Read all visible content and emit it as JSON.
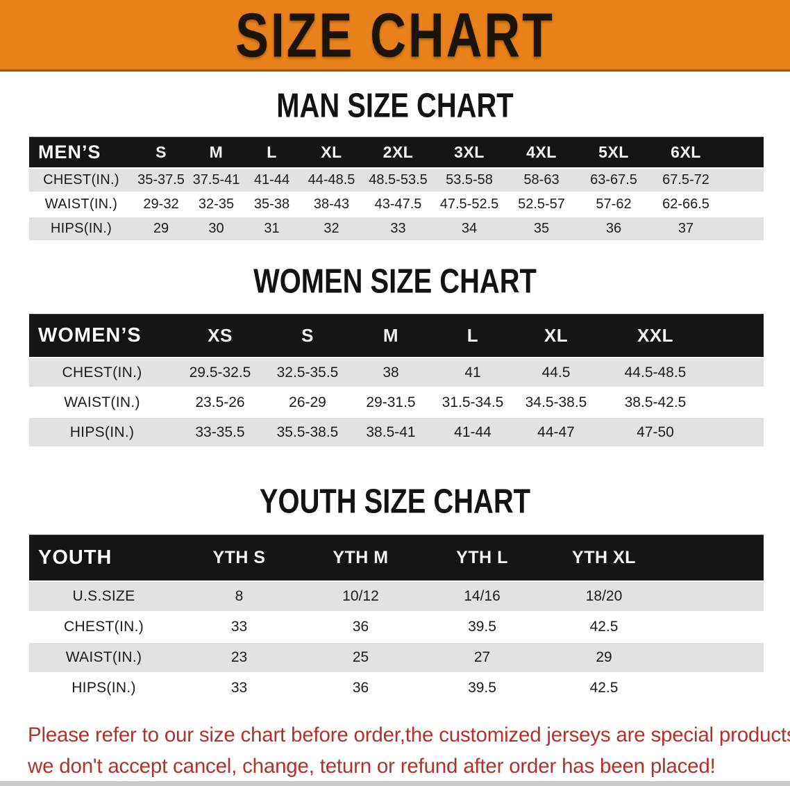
{
  "banner": {
    "title": "SIZE CHART"
  },
  "colors": {
    "banner_bg": "#e8811a",
    "banner_edge": "#9a5a20",
    "header_bg": "#151515",
    "row_gray": "#e2e2e2",
    "row_white": "#ffffff",
    "text_dark": "#1b1b1b",
    "red": "#b2312a",
    "bottom_bar": "#c9c9c9"
  },
  "sections": {
    "men": {
      "title": "MAN SIZE CHART",
      "table": {
        "corner": "MEN’S",
        "columns": [
          "S",
          "M",
          "L",
          "XL",
          "2XL",
          "3XL",
          "4XL",
          "5XL",
          "6XL"
        ],
        "rows": [
          {
            "label": "CHEST(IN.)",
            "values": [
              "35-37.5",
              "37.5-41",
              "41-44",
              "44-48.5",
              "48.5-53.5",
              "53.5-58",
              "58-63",
              "63-67.5",
              "67.5-72"
            ]
          },
          {
            "label": "WAIST(IN.)",
            "values": [
              "29-32",
              "32-35",
              "35-38",
              "38-43",
              "43-47.5",
              "47.5-52.5",
              "52.5-57",
              "57-62",
              "62-66.5"
            ]
          },
          {
            "label": "HIPS(IN.)",
            "values": [
              "29",
              "30",
              "31",
              "32",
              "33",
              "34",
              "35",
              "36",
              "37"
            ]
          }
        ]
      }
    },
    "women": {
      "title": "WOMEN SIZE CHART",
      "table": {
        "corner": "WOMEN’S",
        "columns": [
          "XS",
          "S",
          "M",
          "L",
          "XL",
          "XXL"
        ],
        "rows": [
          {
            "label": "CHEST(IN.)",
            "values": [
              "29.5-32.5",
              "32.5-35.5",
              "38",
              "41",
              "44.5",
              "44.5-48.5"
            ]
          },
          {
            "label": "WAIST(IN.)",
            "values": [
              "23.5-26",
              "26-29",
              "29-31.5",
              "31.5-34.5",
              "34.5-38.5",
              "38.5-42.5"
            ]
          },
          {
            "label": "HIPS(IN.)",
            "values": [
              "33-35.5",
              "35.5-38.5",
              "38.5-41",
              "41-44",
              "44-47",
              "47-50"
            ]
          }
        ]
      }
    },
    "youth": {
      "title": "YOUTH SIZE CHART",
      "table": {
        "corner": "YOUTH",
        "columns": [
          "YTH S",
          "YTH M",
          "YTH L",
          "YTH XL"
        ],
        "rows": [
          {
            "label": "U.S.SIZE",
            "values": [
              "8",
              "10/12",
              "14/16",
              "18/20"
            ]
          },
          {
            "label": "CHEST(IN.)",
            "values": [
              "33",
              "36",
              "39.5",
              "42.5"
            ]
          },
          {
            "label": "WAIST(IN.)",
            "values": [
              "23",
              "25",
              "27",
              "29"
            ]
          },
          {
            "label": "HIPS(IN.)",
            "values": [
              "33",
              "36",
              "39.5",
              "42.5"
            ]
          }
        ]
      }
    }
  },
  "disclaimer": {
    "line1": "Please refer to our size chart before order,the customized jerseys are special products,",
    "line2": "we don't accept cancel, change, teturn or refund after order has been placed!"
  }
}
